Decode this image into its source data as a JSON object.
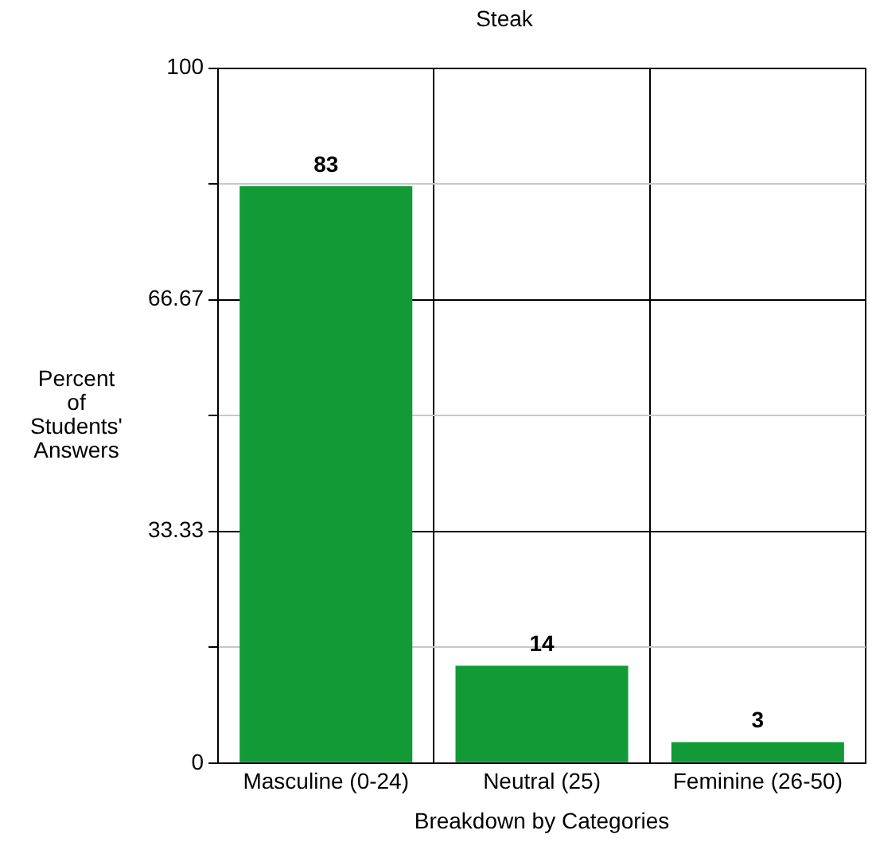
{
  "chart_data": {
    "type": "bar",
    "title": "Steak",
    "xlabel": "Breakdown by Categories",
    "ylabel": "Percent of Students' Answers",
    "categories": [
      "Masculine (0-24)",
      "Neutral (25)",
      "Feminine (26-50)"
    ],
    "values": [
      83,
      14,
      3
    ],
    "color": "#119a36",
    "ylim": [
      0,
      100
    ],
    "yticks": [
      0,
      {
        "value": 16.67,
        "label": null
      },
      33.33,
      {
        "value": 50,
        "label": null
      },
      66.67,
      {
        "value": 83.33,
        "label": null
      },
      100
    ],
    "grid": true,
    "data_labels": true
  }
}
